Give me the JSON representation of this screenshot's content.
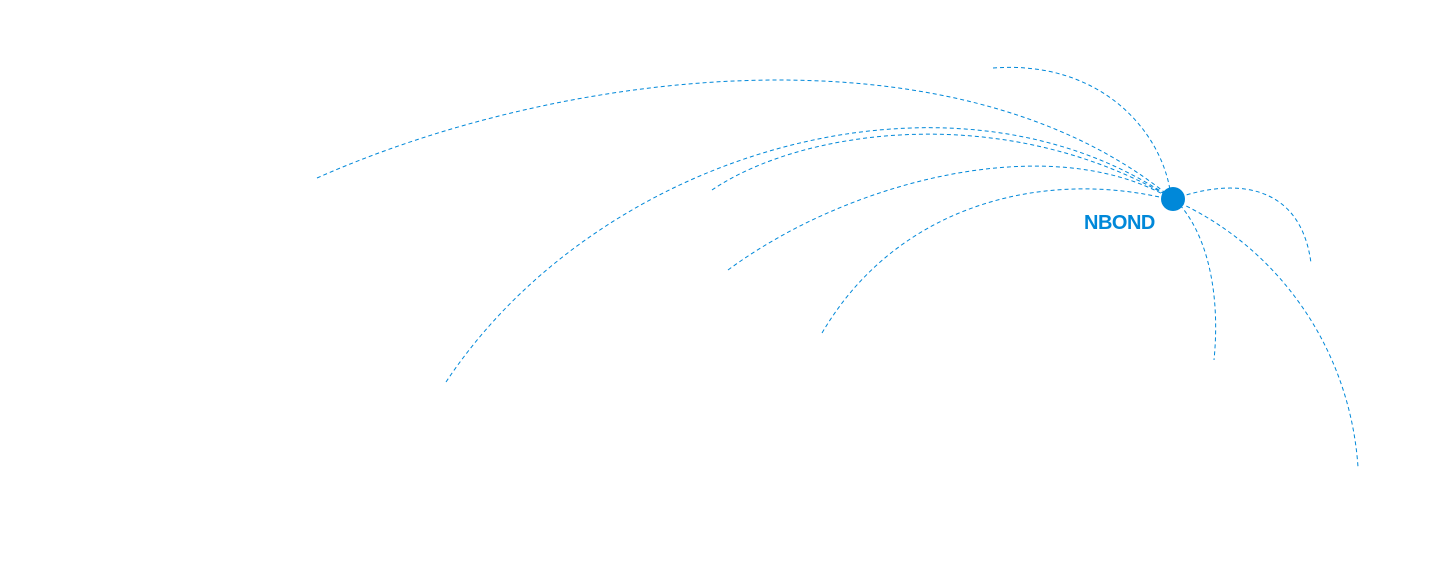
{
  "node": {
    "label": "NBOND",
    "color": "#0088d9"
  },
  "connections_count": 9
}
